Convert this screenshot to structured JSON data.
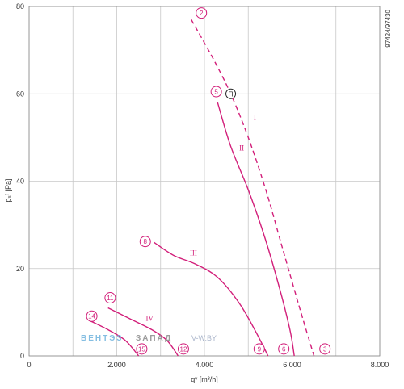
{
  "side_code": "97424/97430",
  "watermark": {
    "part1": "ВЕНТЭЗ",
    "part2": "ЗАПАД",
    "part3": "V-W.BY"
  },
  "chart_data": {
    "type": "line",
    "xlabel": "qᵛ [m³/h]",
    "ylabel": "pₛᶠ [Pa]",
    "xlim": [
      0,
      8000
    ],
    "ylim": [
      0,
      80
    ],
    "x_ticks": [
      0,
      2000,
      4000,
      6000,
      8000
    ],
    "x_tick_labels": [
      "0",
      "2.000",
      "4.000",
      "6.000",
      "8.000"
    ],
    "y_ticks": [
      0,
      20,
      40,
      60,
      80
    ],
    "y_tick_labels": [
      "0",
      "20",
      "40",
      "60",
      "80"
    ],
    "grid": true,
    "colors": {
      "curve": "#d21f7a",
      "grid": "#c8c8c8",
      "axis": "#888888"
    },
    "series": [
      {
        "name": "I",
        "style": "dashed",
        "points": [
          [
            3700,
            77
          ],
          [
            4200,
            68
          ],
          [
            4600,
            60
          ],
          [
            5000,
            50
          ],
          [
            5400,
            38
          ],
          [
            5800,
            24
          ],
          [
            6200,
            10
          ],
          [
            6500,
            0
          ]
        ]
      },
      {
        "name": "II",
        "style": "solid",
        "points": [
          [
            4300,
            58
          ],
          [
            4600,
            48
          ],
          [
            5000,
            38
          ],
          [
            5350,
            28
          ],
          [
            5700,
            16
          ],
          [
            5950,
            6
          ],
          [
            6050,
            0
          ]
        ]
      },
      {
        "name": "III",
        "style": "solid",
        "points": [
          [
            2850,
            26
          ],
          [
            3300,
            23
          ],
          [
            3800,
            21
          ],
          [
            4300,
            18
          ],
          [
            4800,
            12
          ],
          [
            5200,
            5
          ],
          [
            5450,
            0
          ]
        ]
      },
      {
        "name": "IV",
        "style": "solid",
        "points": [
          [
            1800,
            11
          ],
          [
            2300,
            8.5
          ],
          [
            2800,
            6
          ],
          [
            3150,
            3.5
          ],
          [
            3400,
            0
          ]
        ]
      },
      {
        "name": "",
        "style": "solid",
        "points": [
          [
            1400,
            8
          ],
          [
            1800,
            6
          ],
          [
            2200,
            3.5
          ],
          [
            2500,
            0
          ]
        ]
      }
    ],
    "annotations": [
      {
        "text": "I",
        "x": 5150,
        "y": 54
      },
      {
        "text": "II",
        "x": 4850,
        "y": 47
      },
      {
        "text": "III",
        "x": 3750,
        "y": 23
      },
      {
        "text": "IV",
        "x": 2750,
        "y": 8
      }
    ],
    "point_markers": [
      {
        "label": "2",
        "x": 3930,
        "y": 78.5
      },
      {
        "label": "5",
        "x": 4270,
        "y": 60.5
      },
      {
        "label": "11",
        "x": 1850,
        "y": 13.3
      },
      {
        "label": "8",
        "x": 2650,
        "y": 26.2
      },
      {
        "label": "14",
        "x": 1430,
        "y": 9.1
      },
      {
        "label": "15",
        "x": 2570,
        "y": 1.6
      },
      {
        "label": "12",
        "x": 3520,
        "y": 1.6
      },
      {
        "label": "9",
        "x": 5250,
        "y": 1.6
      },
      {
        "label": "6",
        "x": 5810,
        "y": 1.6
      },
      {
        "label": "3",
        "x": 6750,
        "y": 1.6
      }
    ],
    "operating_point": {
      "label": "П",
      "x": 4600,
      "y": 60
    }
  }
}
